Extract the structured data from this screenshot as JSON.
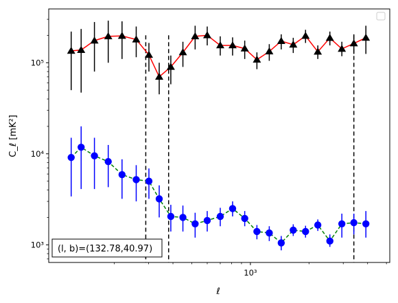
{
  "chart_data": {
    "type": "scatter",
    "xscale": "log",
    "yscale": "log",
    "xlim": [
      92,
      5200
    ],
    "ylim": [
      640,
      390000
    ],
    "xlabel": "ℓ",
    "ylabel": "C_ℓ [mK²]",
    "xticks": [
      {
        "value": 1000,
        "label": "10³"
      }
    ],
    "yticks": [
      {
        "value": 1000,
        "label": "10³"
      },
      {
        "value": 10000,
        "label": "10⁴"
      },
      {
        "value": 100000,
        "label": "10⁵"
      }
    ],
    "annotation": "(l, b)=(132.78,40.97)",
    "legend": "top-right, empty",
    "vlines": [
      290,
      380,
      3400
    ],
    "series": [
      {
        "color": "#000000",
        "line_color": "#ff0000",
        "line_style": "solid",
        "marker": "triangle",
        "points": [
          {
            "x": 120,
            "y": 135000,
            "lo": 50000,
            "hi": 220000
          },
          {
            "x": 135,
            "y": 138000,
            "lo": 47000,
            "hi": 235000
          },
          {
            "x": 158,
            "y": 175000,
            "lo": 80000,
            "hi": 280000
          },
          {
            "x": 186,
            "y": 195000,
            "lo": 100000,
            "hi": 290000
          },
          {
            "x": 219,
            "y": 197000,
            "lo": 110000,
            "hi": 285000
          },
          {
            "x": 259,
            "y": 180000,
            "lo": 115000,
            "hi": 250000
          },
          {
            "x": 301,
            "y": 122000,
            "lo": 80000,
            "hi": 165000
          },
          {
            "x": 340,
            "y": 70000,
            "lo": 45000,
            "hi": 100000
          },
          {
            "x": 390,
            "y": 90000,
            "lo": 58000,
            "hi": 120000
          },
          {
            "x": 450,
            "y": 130000,
            "lo": 90000,
            "hi": 170000
          },
          {
            "x": 520,
            "y": 195000,
            "lo": 140000,
            "hi": 255000
          },
          {
            "x": 600,
            "y": 200000,
            "lo": 155000,
            "hi": 250000
          },
          {
            "x": 700,
            "y": 155000,
            "lo": 120000,
            "hi": 195000
          },
          {
            "x": 810,
            "y": 155000,
            "lo": 120000,
            "hi": 190000
          },
          {
            "x": 935,
            "y": 143000,
            "lo": 110000,
            "hi": 175000
          },
          {
            "x": 1080,
            "y": 108000,
            "lo": 85000,
            "hi": 130000
          },
          {
            "x": 1250,
            "y": 133000,
            "lo": 105000,
            "hi": 160000
          },
          {
            "x": 1440,
            "y": 173000,
            "lo": 140000,
            "hi": 205000
          },
          {
            "x": 1660,
            "y": 158000,
            "lo": 128000,
            "hi": 188000
          },
          {
            "x": 1920,
            "y": 197000,
            "lo": 165000,
            "hi": 230000
          },
          {
            "x": 2220,
            "y": 132000,
            "lo": 110000,
            "hi": 155000
          },
          {
            "x": 2560,
            "y": 187000,
            "lo": 155000,
            "hi": 220000
          },
          {
            "x": 2950,
            "y": 142000,
            "lo": 118000,
            "hi": 170000
          },
          {
            "x": 3400,
            "y": 163000,
            "lo": 125000,
            "hi": 205000
          },
          {
            "x": 3920,
            "y": 188000,
            "lo": 125000,
            "hi": 255000
          }
        ]
      },
      {
        "color": "#0000ff",
        "line_color": "#008000",
        "line_style": "dashed",
        "marker": "circle",
        "points": [
          {
            "x": 120,
            "y": 9100,
            "lo": 3400,
            "hi": 15000
          },
          {
            "x": 135,
            "y": 11800,
            "lo": 4100,
            "hi": 20000
          },
          {
            "x": 158,
            "y": 9500,
            "lo": 4100,
            "hi": 15000
          },
          {
            "x": 186,
            "y": 8200,
            "lo": 4300,
            "hi": 12500
          },
          {
            "x": 219,
            "y": 5900,
            "lo": 3200,
            "hi": 8700
          },
          {
            "x": 259,
            "y": 5200,
            "lo": 3000,
            "hi": 7500
          },
          {
            "x": 301,
            "y": 5000,
            "lo": 3200,
            "hi": 6900
          },
          {
            "x": 340,
            "y": 3200,
            "lo": 2000,
            "hi": 4500
          },
          {
            "x": 390,
            "y": 2050,
            "lo": 1400,
            "hi": 2750
          },
          {
            "x": 450,
            "y": 2000,
            "lo": 1400,
            "hi": 2700
          },
          {
            "x": 520,
            "y": 1700,
            "lo": 1200,
            "hi": 2250
          },
          {
            "x": 600,
            "y": 1850,
            "lo": 1400,
            "hi": 2350
          },
          {
            "x": 700,
            "y": 2050,
            "lo": 1600,
            "hi": 2550
          },
          {
            "x": 810,
            "y": 2500,
            "lo": 2050,
            "hi": 3000
          },
          {
            "x": 935,
            "y": 1950,
            "lo": 1600,
            "hi": 2350
          },
          {
            "x": 1080,
            "y": 1400,
            "lo": 1150,
            "hi": 1650
          },
          {
            "x": 1250,
            "y": 1350,
            "lo": 1100,
            "hi": 1600
          },
          {
            "x": 1440,
            "y": 1050,
            "lo": 870,
            "hi": 1250
          },
          {
            "x": 1660,
            "y": 1450,
            "lo": 1250,
            "hi": 1680
          },
          {
            "x": 1920,
            "y": 1400,
            "lo": 1200,
            "hi": 1620
          },
          {
            "x": 2220,
            "y": 1650,
            "lo": 1420,
            "hi": 1900
          },
          {
            "x": 2560,
            "y": 1100,
            "lo": 950,
            "hi": 1300
          },
          {
            "x": 2950,
            "y": 1700,
            "lo": 1200,
            "hi": 2200
          },
          {
            "x": 3400,
            "y": 1750,
            "lo": 1300,
            "hi": 2200
          },
          {
            "x": 3920,
            "y": 1700,
            "lo": 1200,
            "hi": 2350
          }
        ]
      }
    ]
  }
}
